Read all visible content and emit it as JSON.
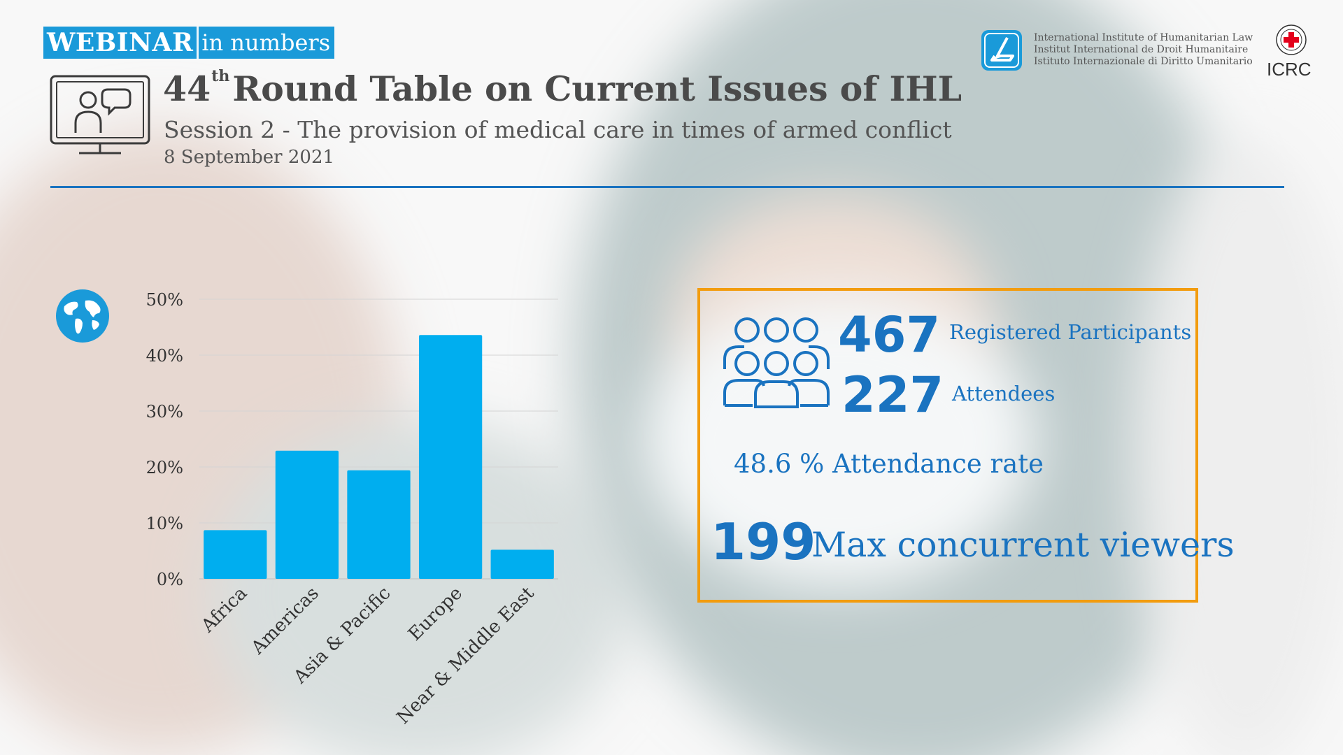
{
  "badge": {
    "strong": "WEBINAR",
    "rest": "in numbers"
  },
  "header": {
    "title_num": "44",
    "title_sup": "th",
    "title_rest": "Round Table on Current Issues of IHL",
    "subtitle": "Session 2 - The provision of medical care in times of armed conflict",
    "date": "8 September 2021"
  },
  "logos": {
    "iihl_lines": [
      "International Institute of Humanitarian Law",
      "Institut International de Droit Humanitaire",
      "Istituto Internazionale di Diritto Umanitario"
    ],
    "icrc": "ICRC"
  },
  "icons": {
    "monitor": "video-meeting-icon",
    "globe": "globe-icon",
    "people": "people-group-icon"
  },
  "colors": {
    "accent": "#1a73c0",
    "bar": "#00aeef",
    "badge": "#1a9ad9",
    "box_border": "#f29c0f"
  },
  "chart_data": {
    "type": "bar",
    "categories": [
      "Africa",
      "Americas",
      "Asia & Pacific",
      "Europe",
      "Near & Middle East"
    ],
    "values": [
      8.7,
      22.9,
      19.4,
      43.6,
      5.2
    ],
    "yticks": [
      "0%",
      "10%",
      "20%",
      "30%",
      "40%",
      "50%"
    ],
    "ylim": [
      0,
      50
    ],
    "grid": true,
    "legend": "none",
    "title": "",
    "xlabel": "",
    "ylabel": ""
  },
  "stats": {
    "registered_value": "467",
    "registered_label": "Registered Participants",
    "attendees_value": "227",
    "attendees_label": "Attendees",
    "attendance_rate": "48.6 % Attendance rate",
    "max_value": "199",
    "max_label": "Max concurrent viewers"
  }
}
